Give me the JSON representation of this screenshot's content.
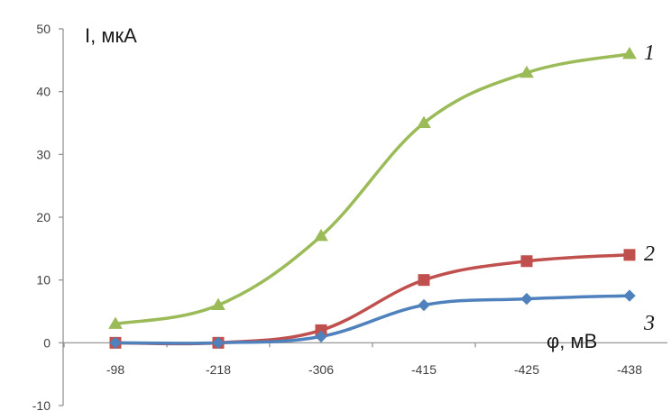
{
  "chart_data": {
    "type": "line",
    "categories": [
      "-98",
      "-218",
      "-306",
      "-415",
      "-425",
      "-438"
    ],
    "ylim": [
      -10,
      50
    ],
    "yticks": [
      -10,
      0,
      10,
      20,
      30,
      40,
      50
    ],
    "ylabel": "I, мкА",
    "xlabel": "φ, мВ",
    "grid": false,
    "series": [
      {
        "name": "1",
        "color": "#9bbb59",
        "marker": "triangle",
        "values": [
          3,
          6,
          17,
          35,
          43,
          46
        ]
      },
      {
        "name": "2",
        "color": "#c0504d",
        "marker": "square",
        "values": [
          0,
          0,
          2,
          10,
          13,
          14
        ]
      },
      {
        "name": "3",
        "color": "#4f81bd",
        "marker": "diamond",
        "values": [
          0,
          0,
          1,
          6,
          7,
          7.5
        ]
      }
    ]
  }
}
